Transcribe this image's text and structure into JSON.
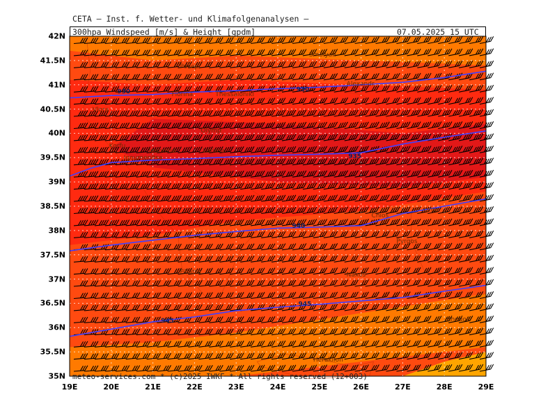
{
  "header": {
    "credit": "CETA – Inst. f. Wetter- und Klimafolgenanalysen –",
    "title": "300hpa Windspeed [m/s] & Height [gpdm]",
    "datetime": "07.05.2025 15 UTC"
  },
  "footer": {
    "note": "meteo-services.com * (c)2025 IWKF * All rights reserved (12+003)"
  },
  "axes": {
    "lat_labels": [
      "42N",
      "41.5N",
      "41N",
      "40.5N",
      "40N",
      "39.5N",
      "39N",
      "38.5N",
      "38N",
      "37.5N",
      "37N",
      "36.5N",
      "36N",
      "35.5N",
      "35N"
    ],
    "lon_labels": [
      "19E",
      "20E",
      "21E",
      "22E",
      "23E",
      "24E",
      "25E",
      "26E",
      "27E",
      "28E",
      "29E"
    ]
  },
  "places": [
    {
      "name": "Pollep",
      "lon": 21.65,
      "lat": 41.35
    },
    {
      "name": "Florina",
      "lon": 21.45,
      "lat": 40.78
    },
    {
      "name": "Thessaloniki",
      "lon": 22.5,
      "lat": 40.78
    },
    {
      "name": "Vlora",
      "lon": 19.55,
      "lat": 40.47
    },
    {
      "name": "Olymp",
      "lon": 22.15,
      "lat": 40.03
    },
    {
      "name": "Korfu",
      "lon": 19.95,
      "lat": 39.72
    },
    {
      "name": "Ioannina",
      "lon": 20.9,
      "lat": 39.62
    },
    {
      "name": "Igoumenitsa",
      "lon": 20.3,
      "lat": 39.48
    },
    {
      "name": "Larissa",
      "lon": 22.2,
      "lat": 39.62
    },
    {
      "name": "Smolyan",
      "lon": 24.75,
      "lat": 41.6
    },
    {
      "name": "Alexandr.",
      "lon": 25.65,
      "lat": 41.0
    },
    {
      "name": "Chios",
      "lon": 26.25,
      "lat": 38.28
    },
    {
      "name": "Izmir",
      "lon": 27.5,
      "lat": 38.4
    },
    {
      "name": "Pyrgos",
      "lon": 26.85,
      "lat": 37.75
    },
    {
      "name": "Filiatra",
      "lon": 21.65,
      "lat": 37.12
    },
    {
      "name": "Naxos",
      "lon": 25.65,
      "lat": 37.07
    },
    {
      "name": "Rhodos",
      "lon": 28.05,
      "lat": 36.15
    },
    {
      "name": "Heraklion",
      "lon": 24.85,
      "lat": 35.32
    }
  ],
  "height_contours": [
    {
      "label": "930",
      "points": [
        [
          19,
          40.73
        ],
        [
          20,
          40.78
        ],
        [
          21,
          40.8
        ],
        [
          22,
          40.85
        ],
        [
          23,
          40.88
        ],
        [
          24,
          40.92
        ],
        [
          25,
          40.95
        ],
        [
          26,
          41.0
        ],
        [
          27,
          41.05
        ],
        [
          28,
          41.15
        ],
        [
          29,
          41.28
        ]
      ],
      "label_at": [
        20.3,
        40.85
      ]
    },
    {
      "label": "930",
      "points": [
        [
          19,
          39.12
        ],
        [
          19.5,
          39.28
        ],
        [
          20,
          39.4
        ],
        [
          21,
          39.45
        ],
        [
          22,
          39.48
        ],
        [
          23,
          39.52
        ],
        [
          24,
          39.55
        ],
        [
          25,
          39.57
        ],
        [
          26,
          39.6
        ],
        [
          27,
          39.78
        ],
        [
          28,
          39.92
        ],
        [
          29,
          40.05
        ]
      ],
      "label_at": [
        24.6,
        40.9
      ]
    },
    {
      "label": "935",
      "points": [
        [
          19,
          37.58
        ],
        [
          20,
          37.7
        ],
        [
          21,
          37.8
        ],
        [
          22,
          37.9
        ],
        [
          23,
          37.98
        ],
        [
          24,
          38.05
        ],
        [
          25,
          38.07
        ],
        [
          26,
          38.1
        ],
        [
          27,
          38.35
        ],
        [
          28,
          38.5
        ],
        [
          29,
          38.65
        ]
      ],
      "label_at": [
        25.85,
        39.52
      ]
    },
    {
      "label": "940",
      "points": [],
      "label_at": [
        24.5,
        38.08
      ]
    },
    {
      "label": "945",
      "points": [
        [
          19,
          35.82
        ],
        [
          20,
          35.97
        ],
        [
          21,
          36.12
        ],
        [
          22,
          36.22
        ],
        [
          23,
          36.35
        ],
        [
          24,
          36.42
        ],
        [
          25,
          36.48
        ],
        [
          26,
          36.55
        ],
        [
          27,
          36.62
        ],
        [
          28,
          36.75
        ],
        [
          29,
          36.87
        ]
      ],
      "label_at": [
        24.65,
        36.48
      ]
    },
    {
      "label": "945",
      "points": [],
      "label_at": [
        21.35,
        36.13
      ]
    }
  ],
  "wind_field_note": "",
  "colors": {
    "deep": "#e21818",
    "core": "#ff2a10",
    "mid": "#ff4a10",
    "outer": "#ff7a00",
    "light": "#ffa500",
    "contour": "#4040ff",
    "grid": "#ffffff"
  }
}
